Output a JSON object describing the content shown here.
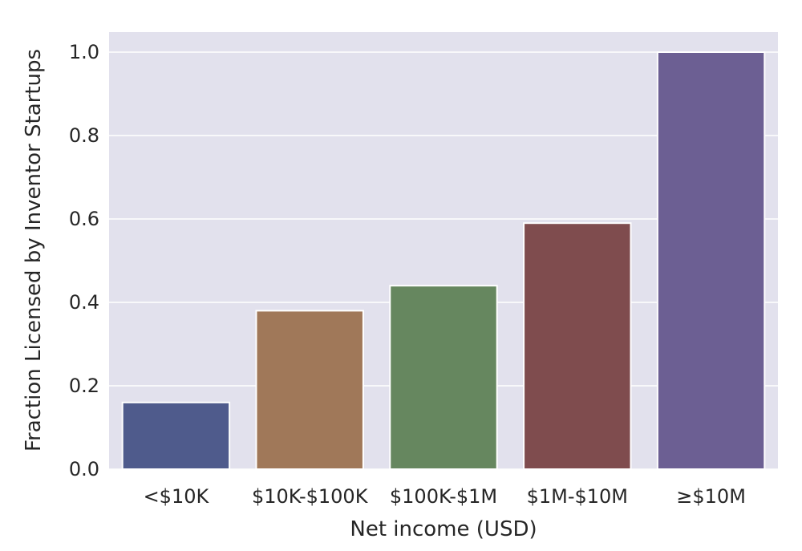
{
  "chart_data": {
    "type": "bar",
    "categories": [
      "<$10K",
      "$10K-$100K",
      "$100K-$1M",
      "$1M-$10M",
      "≥$10M"
    ],
    "values": [
      0.16,
      0.38,
      0.44,
      0.59,
      1.0
    ],
    "colors": [
      "#4f5b8c",
      "#a07859",
      "#66875f",
      "#7f4c4e",
      "#6c5f93"
    ],
    "title": "",
    "xlabel": "Net income (USD)",
    "ylabel": "Fraction Licensed by Inventor Startups",
    "ylim": [
      0,
      1.05
    ],
    "yticks": [
      "0.0",
      "0.2",
      "0.4",
      "0.6",
      "0.8",
      "1.0"
    ],
    "grid": true,
    "background": "#e2e1ed"
  }
}
